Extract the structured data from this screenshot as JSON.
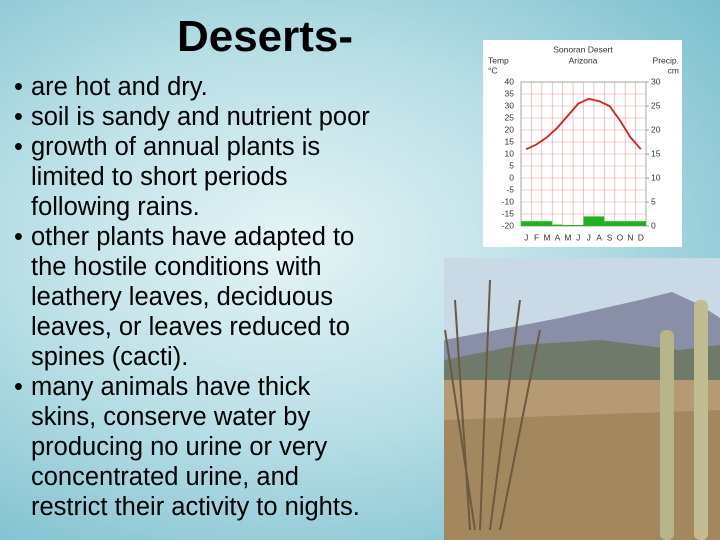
{
  "title": "Deserts-",
  "bullets": [
    [
      "are hot and dry."
    ],
    [
      "soil is sandy and nutrient poor"
    ],
    [
      "growth of annual plants is",
      "limited to short periods",
      "following rains."
    ],
    [
      "other plants have adapted to",
      "the hostile conditions with",
      "leathery leaves, deciduous",
      "leaves, or leaves reduced to",
      "spines (cacti)."
    ],
    [
      "many animals have thick",
      "skins, conserve water by",
      "producing no urine or very",
      "concentrated urine, and",
      "restrict their activity to nights."
    ]
  ],
  "chart_data": {
    "type": "climate",
    "title": "Sonoran Desert",
    "subtitle": "Arizona",
    "y_label": "Temp",
    "y_unit": "°C",
    "y2_label": "Precip.",
    "y2_unit": "cm",
    "categories": [
      "J",
      "F",
      "M",
      "A",
      "M",
      "J",
      "J",
      "A",
      "S",
      "O",
      "N",
      "D"
    ],
    "series": [
      {
        "name": "Temperature",
        "color": "#d62020",
        "values": [
          12,
          14,
          17,
          21,
          26,
          31,
          33,
          32,
          30,
          24,
          17,
          12
        ]
      },
      {
        "name": "Precipitation",
        "color": "#22b022",
        "axis": "y2",
        "values": [
          1,
          1,
          1,
          0.3,
          0.2,
          0.2,
          2,
          2,
          1,
          1,
          1,
          1
        ]
      }
    ],
    "ylim": [
      -20,
      40
    ],
    "yticks": [
      -20,
      -15,
      -10,
      -5,
      0,
      5,
      10,
      15,
      20,
      25,
      30,
      35,
      40
    ],
    "y2lim": [
      0,
      30
    ],
    "y2ticks": [
      0,
      5,
      10,
      15,
      20,
      25,
      30
    ],
    "grid": true
  }
}
